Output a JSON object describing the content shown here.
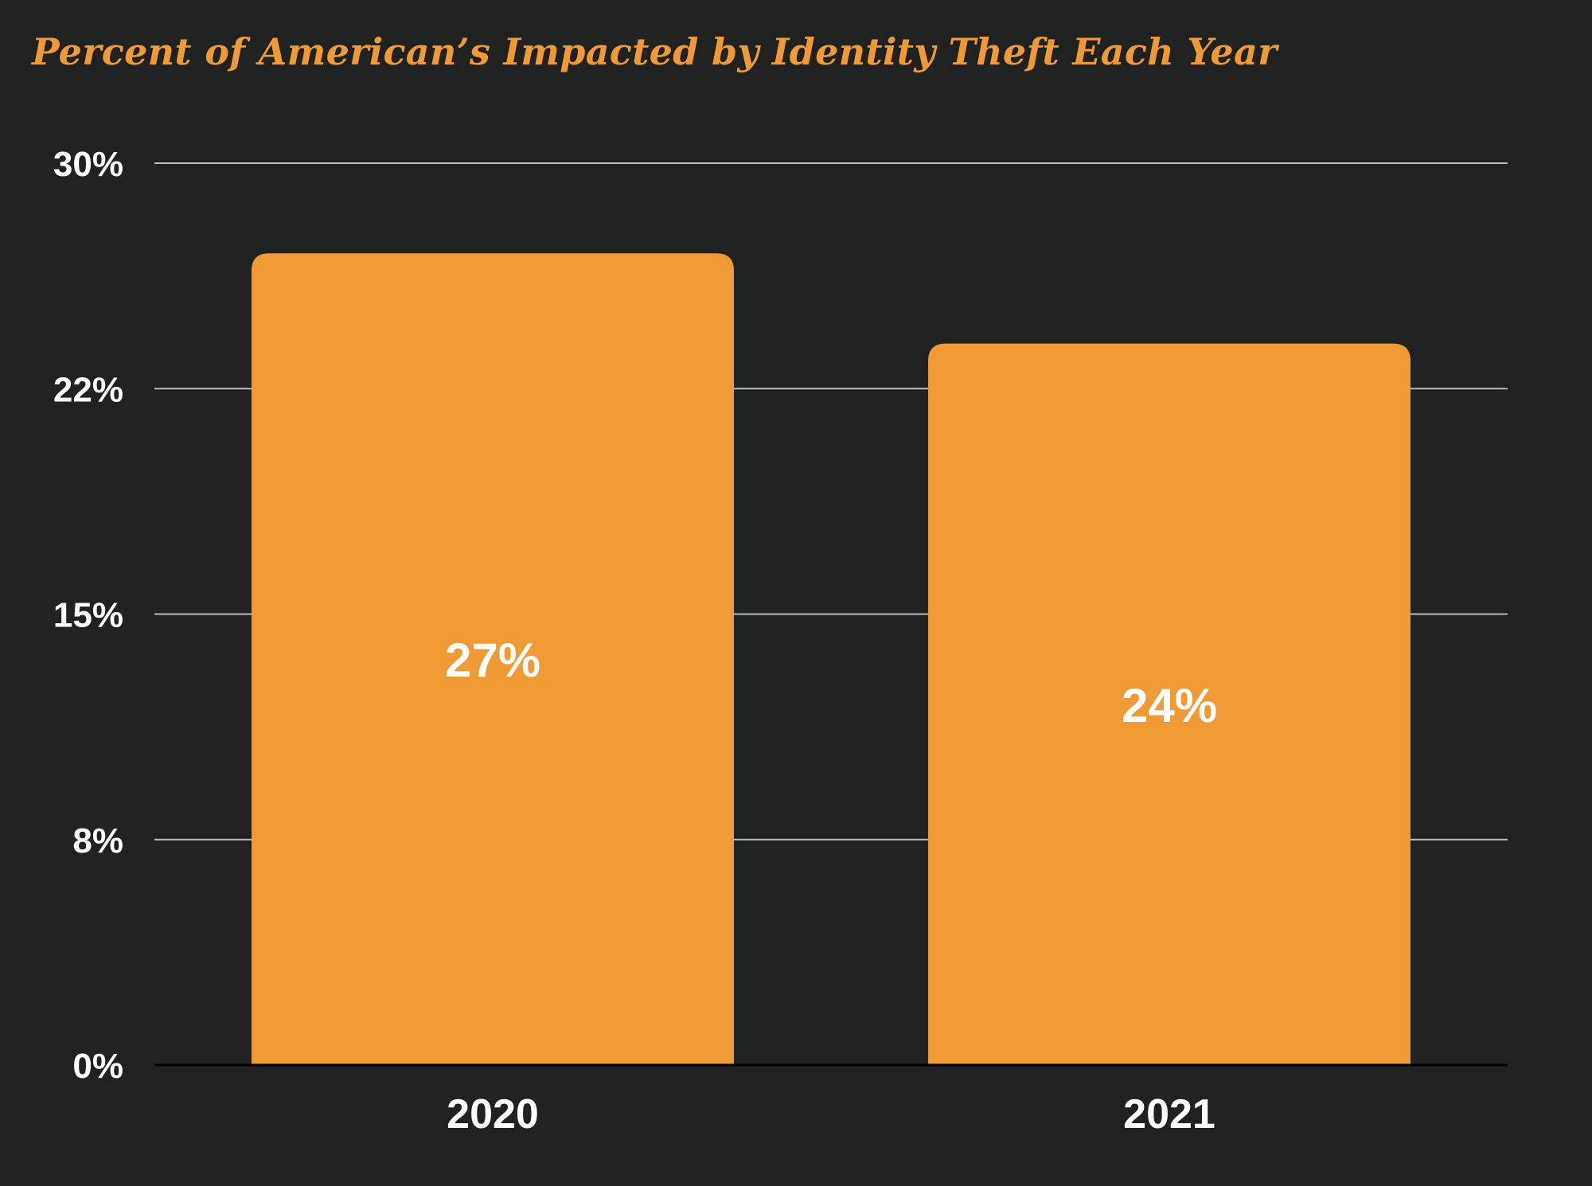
{
  "chart_data": {
    "type": "bar",
    "title": "Percent of American’s Impacted by Identity Theft Each Year",
    "xlabel": "",
    "ylabel": "",
    "categories": [
      "2020",
      "2021"
    ],
    "values": [
      27,
      24
    ],
    "data_labels": [
      "27%",
      "24%"
    ],
    "y_ticks": [
      "30%",
      "22%",
      "15%",
      "8%",
      "0%"
    ],
    "ylim": [
      0,
      30
    ],
    "grid": true,
    "legend": "none"
  },
  "colors": {
    "background": "#202121",
    "bar": "#F09A36",
    "title": "#F09A36",
    "gridline": "#BDBDBD",
    "text": "#FFFFFF"
  }
}
